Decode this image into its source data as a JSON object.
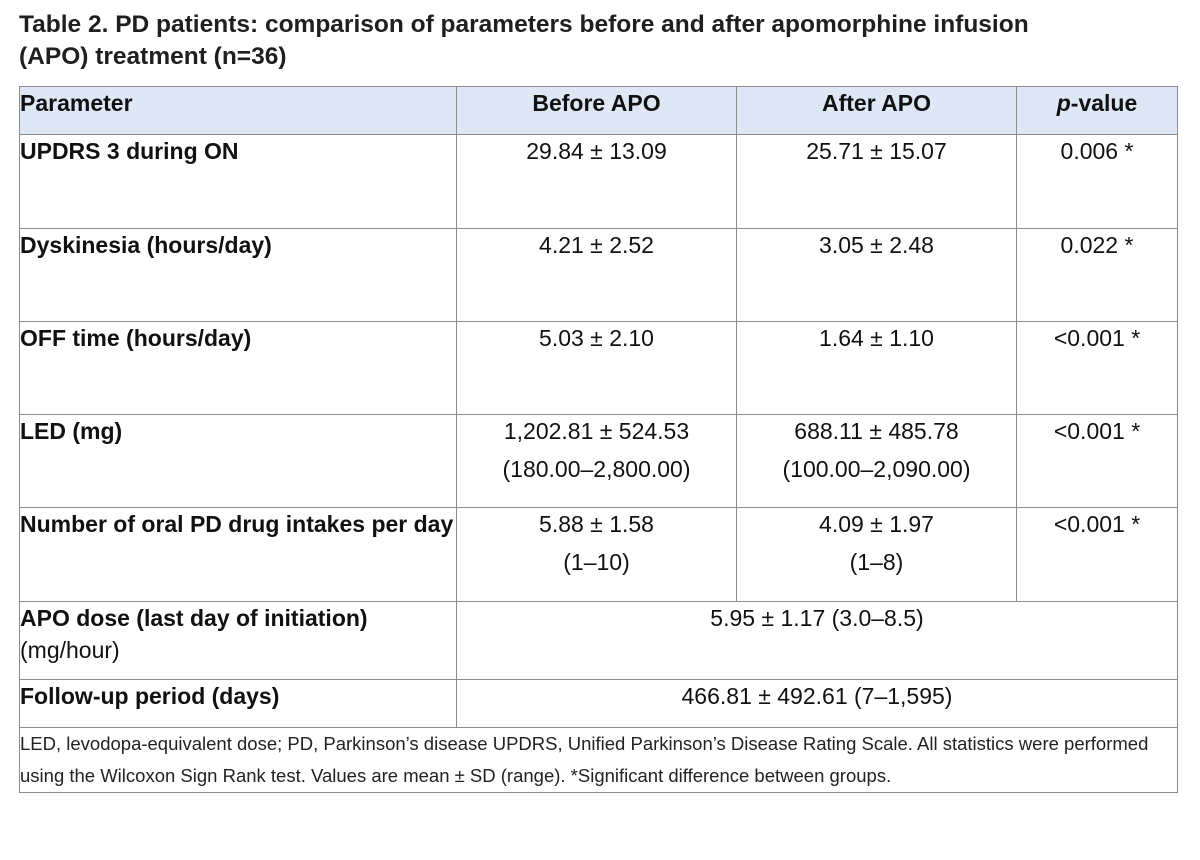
{
  "caption": {
    "line1": "Table 2. PD patients: comparison of parameters before and after apomorphine infusion",
    "line2": "(APO) treatment (n=36)"
  },
  "headers": {
    "parameter": "Parameter",
    "before": "Before APO",
    "after": "After APO",
    "p_italic": "p",
    "p_rest": "-value"
  },
  "rows": [
    {
      "param": "UPDRS 3 during ON",
      "before": "29.84 ± 13.09",
      "after": "25.71 ± 15.07",
      "p": "0.006 *"
    },
    {
      "param": "Dyskinesia (hours/day)",
      "before": "4.21 ± 2.52",
      "after": "3.05 ± 2.48",
      "p": "0.022 *"
    },
    {
      "param": "OFF time (hours/day)",
      "before": "5.03 ± 2.10",
      "after": "1.64 ± 1.10",
      "p": "<0.001 *"
    },
    {
      "param": "LED (mg)",
      "before": "1,202.81 ± 524.53",
      "before_range": "(180.00–2,800.00)",
      "after": "688.11 ± 485.78",
      "after_range": "(100.00–2,090.00)",
      "p": "<0.001 *"
    },
    {
      "param": "Number of oral PD drug intakes per day",
      "before": "5.88 ± 1.58",
      "before_range": "(1–10)",
      "after": "4.09 ± 1.97",
      "after_range": "(1–8)",
      "p": "<0.001 *"
    }
  ],
  "apo_dose": {
    "param_bold": "APO dose (last day of initiation)",
    "param_unit": " (mg/hour)",
    "value": "5.95 ± 1.17 (3.0–8.5)"
  },
  "follow_up": {
    "param": "Follow-up period (days)",
    "value": "466.81 ± 492.61 (7–1,595)"
  },
  "footnote": "LED, levodopa-equivalent dose; PD, Parkinson’s disease UPDRS, Unified Parkinson’s Disease Rating Scale. All statistics were performed using the Wilcoxon Sign Rank test. Values are mean ± SD (range). *Significant difference between groups."
}
